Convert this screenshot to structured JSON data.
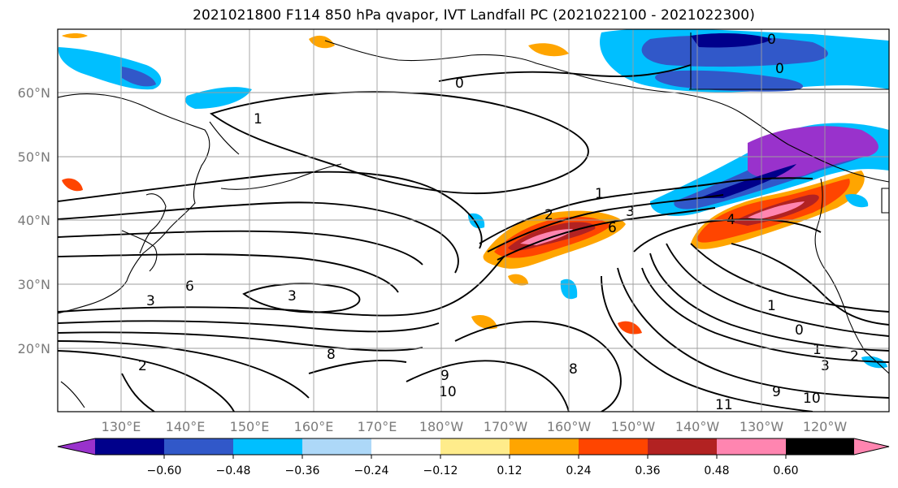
{
  "title": "2021021800 F114 850 hPa qvapor, IVT Landfall PC (2021022100 - 2021022300)",
  "lat_ticks": [
    "60°N",
    "50°N",
    "40°N",
    "30°N",
    "20°N"
  ],
  "lon_ticks": [
    "130°E",
    "140°E",
    "150°E",
    "160°E",
    "170°E",
    "180°W",
    "170°W",
    "160°W",
    "150°W",
    "140°W",
    "130°W",
    "120°W"
  ],
  "colorbar": {
    "colors": [
      "#9932cc",
      "#00008b",
      "#3158c9",
      "#00bfff",
      "#add8f8",
      "#ffffff",
      "#ffec8b",
      "#ffa500",
      "#ff4500",
      "#b22222",
      "#ff85b0"
    ],
    "tick_labels": [
      "−0.60",
      "−0.48",
      "−0.36",
      "−0.24",
      "−0.12",
      "0.12",
      "0.24",
      "0.36",
      "0.48",
      "0.60"
    ]
  },
  "contour_labels": [
    "0",
    "0",
    "0",
    "1",
    "1",
    "1",
    "2",
    "2",
    "3",
    "3",
    "3",
    "4",
    "6",
    "6",
    "8",
    "8",
    "9",
    "9",
    "10",
    "10",
    "11",
    "0",
    "1",
    "2",
    "3"
  ]
}
